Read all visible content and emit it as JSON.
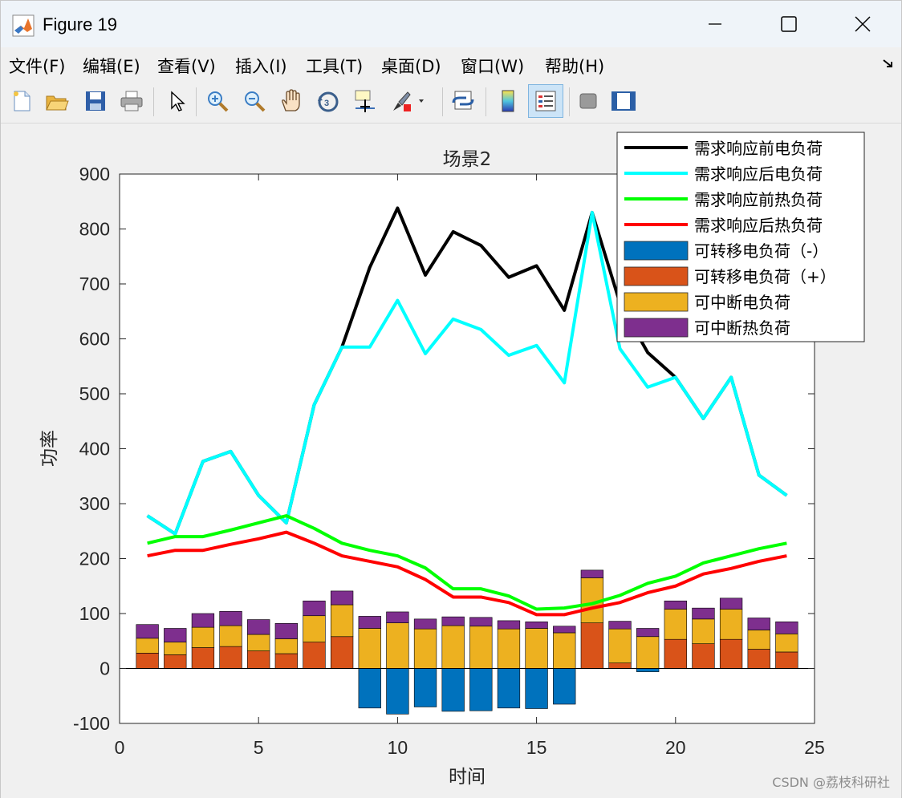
{
  "window": {
    "title": "Figure 19",
    "app_icon": "matlab-icon"
  },
  "menubar": {
    "items": [
      {
        "label": "文件(F)"
      },
      {
        "label": "编辑(E)"
      },
      {
        "label": "查看(V)"
      },
      {
        "label": "插入(I)"
      },
      {
        "label": "工具(T)"
      },
      {
        "label": "桌面(D)"
      },
      {
        "label": "窗口(W)"
      },
      {
        "label": "帮助(H)"
      }
    ],
    "dock_icon": "dock-arrow-icon"
  },
  "toolbar": {
    "icons": [
      "new-figure-icon",
      "open-file-icon",
      "save-icon",
      "print-icon",
      "select-cursor-icon",
      "zoom-in-icon",
      "zoom-out-icon",
      "pan-hand-icon",
      "rotate-3d-icon",
      "data-cursor-icon",
      "brush-icon",
      "link-plot-icon",
      "colorbar-icon",
      "legend-icon",
      "hide-plot-tools-icon",
      "show-plot-tools-icon"
    ]
  },
  "watermark": "CSDN @荔枝科研社",
  "chart_data": {
    "type": "bar",
    "title": "场景2",
    "xlabel": "时间",
    "ylabel": "功率",
    "xlim": [
      0,
      25
    ],
    "ylim": [
      -100,
      900
    ],
    "xticks": [
      0,
      5,
      10,
      15,
      20,
      25
    ],
    "yticks": [
      -100,
      0,
      100,
      200,
      300,
      400,
      500,
      600,
      700,
      800,
      900
    ],
    "grid": false,
    "legend_position": "top-right",
    "x": [
      1,
      2,
      3,
      4,
      5,
      6,
      7,
      8,
      9,
      10,
      11,
      12,
      13,
      14,
      15,
      16,
      17,
      18,
      19,
      20,
      21,
      22,
      23,
      24
    ],
    "lines": [
      {
        "name": "需求响应前电负荷",
        "color": "#000000",
        "values": [
          278,
          245,
          377,
          395,
          315,
          265,
          480,
          585,
          730,
          838,
          716,
          795,
          770,
          712,
          733,
          652,
          830,
          665,
          575,
          530,
          455,
          530,
          352,
          315
        ]
      },
      {
        "name": "需求响应后电负荷",
        "color": "#00ffff",
        "values": [
          278,
          245,
          377,
          395,
          315,
          265,
          480,
          585,
          585,
          670,
          573,
          636,
          617,
          570,
          588,
          520,
          830,
          582,
          512,
          530,
          455,
          530,
          352,
          315
        ]
      },
      {
        "name": "需求响应前热负荷",
        "color": "#00ff00",
        "values": [
          228,
          240,
          240,
          252,
          265,
          278,
          255,
          228,
          215,
          205,
          183,
          145,
          145,
          132,
          108,
          110,
          118,
          133,
          155,
          168,
          192,
          205,
          218,
          228
        ]
      },
      {
        "name": "需求响应后热负荷",
        "color": "#ff0000",
        "values": [
          205,
          215,
          215,
          226,
          236,
          248,
          228,
          205,
          195,
          185,
          162,
          130,
          130,
          120,
          98,
          98,
          110,
          120,
          138,
          150,
          172,
          182,
          195,
          205
        ]
      }
    ],
    "bars": [
      {
        "name": "可转移电负荷（-）",
        "color": "#0072bd",
        "values": [
          0,
          0,
          0,
          0,
          0,
          0,
          0,
          0,
          -72,
          -83,
          -70,
          -78,
          -77,
          -72,
          -73,
          -65,
          0,
          0,
          -6,
          0,
          0,
          0,
          0,
          0
        ]
      },
      {
        "name": "可转移电负荷（+）",
        "color": "#d95319",
        "values": [
          28,
          25,
          38,
          40,
          32,
          27,
          48,
          58,
          0,
          0,
          0,
          0,
          0,
          0,
          0,
          0,
          83,
          10,
          0,
          53,
          45,
          53,
          35,
          30
        ]
      },
      {
        "name": "可中断电负荷",
        "color": "#edb120",
        "values": [
          27,
          23,
          37,
          38,
          30,
          27,
          48,
          58,
          73,
          83,
          72,
          78,
          77,
          72,
          73,
          65,
          82,
          62,
          58,
          55,
          45,
          55,
          35,
          33
        ]
      },
      {
        "name": "可中断热负荷",
        "color": "#7e2f8e",
        "values": [
          25,
          25,
          25,
          26,
          27,
          28,
          27,
          25,
          22,
          20,
          18,
          16,
          16,
          15,
          12,
          12,
          14,
          14,
          15,
          15,
          20,
          20,
          22,
          22
        ]
      }
    ]
  }
}
